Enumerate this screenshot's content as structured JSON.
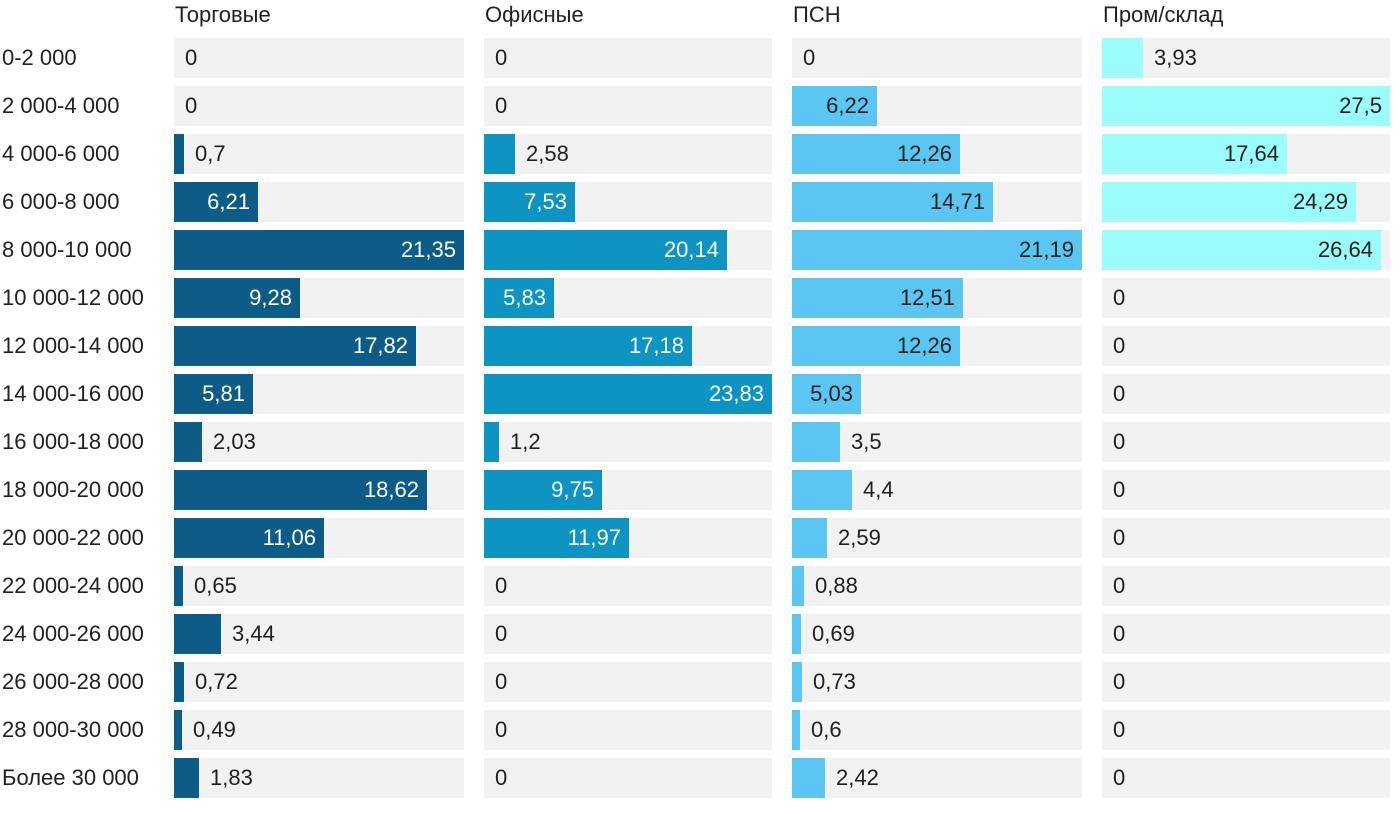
{
  "chart_data": {
    "type": "bar",
    "orientation": "horizontal",
    "layout": "small-multiples",
    "categories": [
      "0-2 000",
      "2 000-4 000",
      "4 000-6 000",
      "6 000-8 000",
      "8 000-10 000",
      "10 000-12 000",
      "12 000-14 000",
      "14 000-16 000",
      "16 000-18 000",
      "18 000-20 000",
      "20 000-22 000",
      "22 000-24 000",
      "24 000-26 000",
      "26 000-28 000",
      "28 000-30 000",
      "Более 30 000"
    ],
    "series": [
      {
        "name": "Торговые",
        "color": "#0d5c88",
        "values": [
          0,
          0,
          0.7,
          6.21,
          21.35,
          9.28,
          17.82,
          5.81,
          2.03,
          18.62,
          11.06,
          0.65,
          3.44,
          0.72,
          0.49,
          1.83
        ],
        "labels": [
          "0",
          "0",
          "0,7",
          "6,21",
          "21,35",
          "9,28",
          "17,82",
          "5,81",
          "2,03",
          "18,62",
          "11,06",
          "0,65",
          "3,44",
          "0,72",
          "0,49",
          "1,83"
        ]
      },
      {
        "name": "Офисные",
        "color": "#0e94c2",
        "values": [
          0,
          0,
          2.58,
          7.53,
          20.14,
          5.83,
          17.18,
          23.83,
          1.2,
          9.75,
          11.97,
          0,
          0,
          0,
          0,
          0
        ],
        "labels": [
          "0",
          "0",
          "2,58",
          "7,53",
          "20,14",
          "5,83",
          "17,18",
          "23,83",
          "1,2",
          "9,75",
          "11,97",
          "0",
          "0",
          "0",
          "0",
          "0"
        ]
      },
      {
        "name": "ПСН",
        "color": "#5bc6f2",
        "values": [
          0,
          6.22,
          12.26,
          14.71,
          21.19,
          12.51,
          12.26,
          5.03,
          3.5,
          4.4,
          2.59,
          0.88,
          0.69,
          0.73,
          0.6,
          2.42
        ],
        "labels": [
          "0",
          "6,22",
          "12,26",
          "14,71",
          "21,19",
          "12,51",
          "12,26",
          "5,03",
          "3,5",
          "4,4",
          "2,59",
          "0,88",
          "0,69",
          "0,73",
          "0,6",
          "2,42"
        ]
      },
      {
        "name": "Пром/склад",
        "color": "#9bfcfc",
        "values": [
          3.93,
          27.5,
          17.64,
          24.29,
          26.64,
          0,
          0,
          0,
          0,
          0,
          0,
          0,
          0,
          0,
          0,
          0
        ],
        "labels": [
          "3,93",
          "27,5",
          "17,64",
          "24,29",
          "26,64",
          "0",
          "0",
          "0",
          "0",
          "0",
          "0",
          "0",
          "0",
          "0",
          "0",
          "0"
        ]
      }
    ],
    "xlim_per_series": [
      [
        0,
        21.35
      ],
      [
        0,
        23.83
      ],
      [
        0,
        21.19
      ],
      [
        0,
        27.5
      ]
    ],
    "title": "",
    "xlabel": "",
    "ylabel": "",
    "grid": false,
    "legend": "none"
  }
}
